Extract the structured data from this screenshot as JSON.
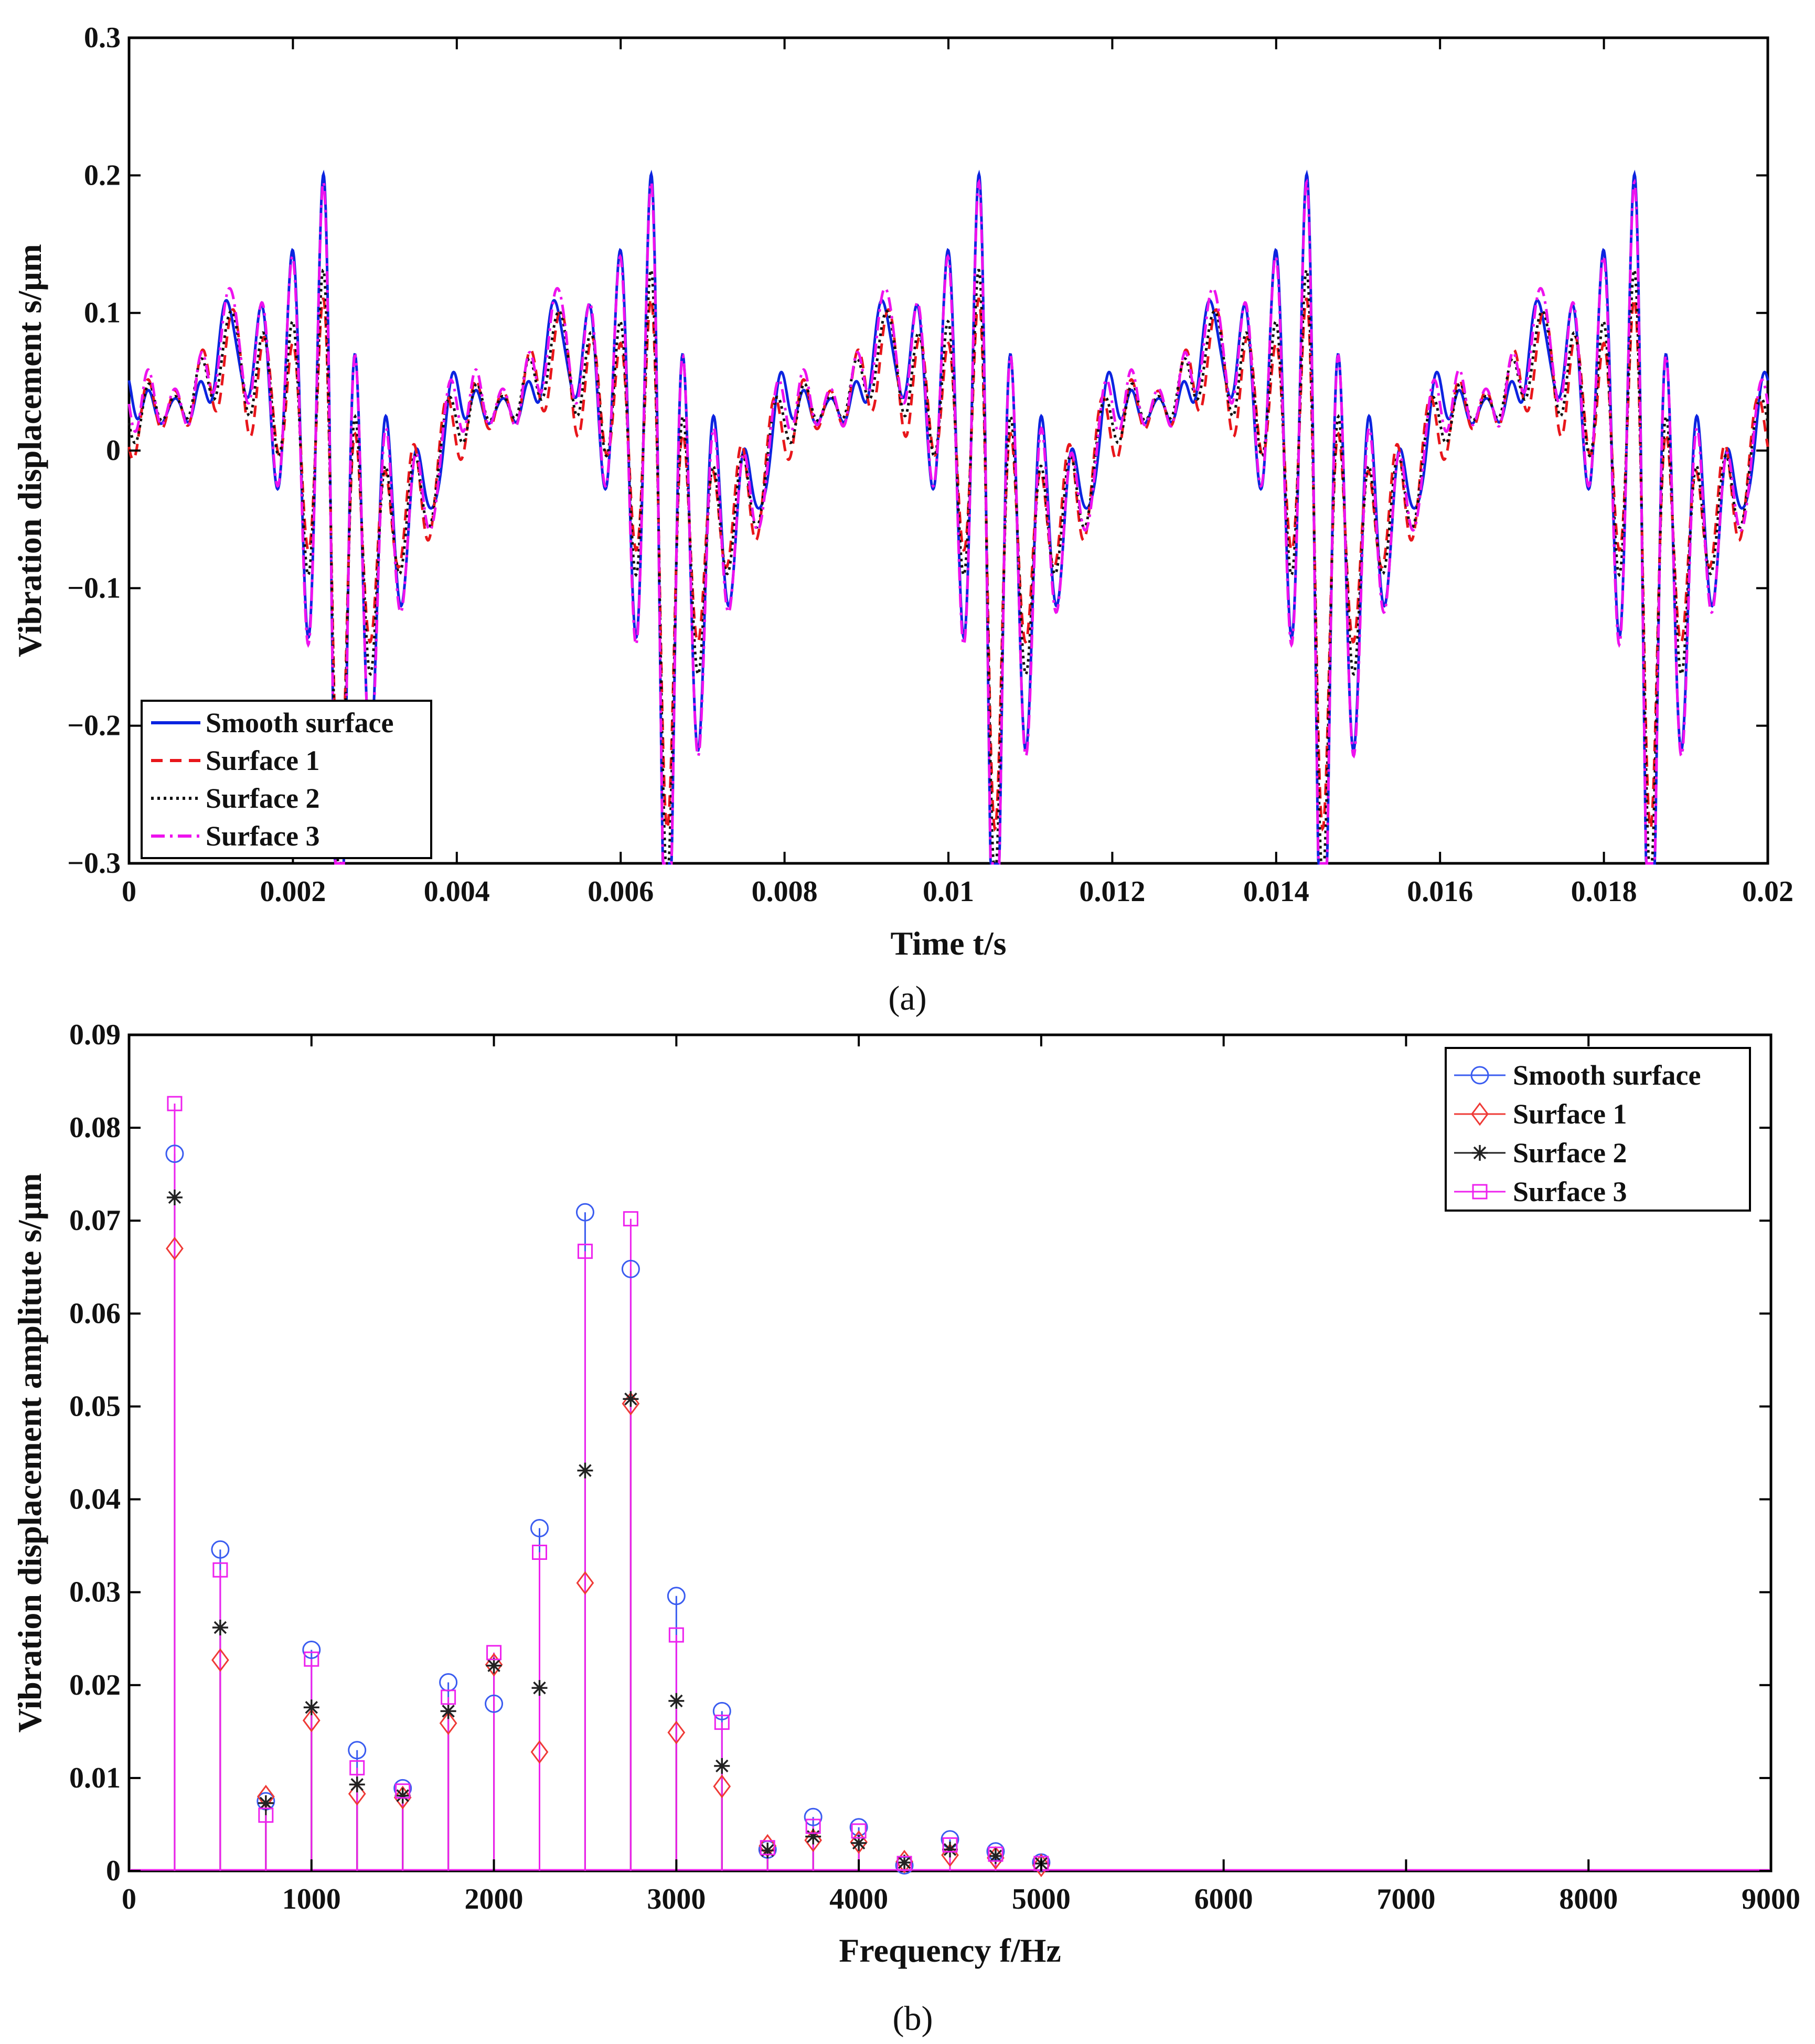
{
  "chart_data": [
    {
      "type": "line",
      "caption": "(a)",
      "xlabel": "Time t/s",
      "ylabel": "Vibration displacement s/μm",
      "xlim": [
        0,
        0.02
      ],
      "ylim": [
        -0.3,
        0.3
      ],
      "xticks": [
        "0",
        "0.002",
        "0.004",
        "0.006",
        "0.008",
        "0.01",
        "0.012",
        "0.014",
        "0.016",
        "0.018",
        "0.02"
      ],
      "yticks": [
        "-0.3",
        "-0.2",
        "-0.1",
        "0",
        "0.1",
        "0.2",
        "0.3"
      ],
      "grid": false,
      "legend_position": "bottom-left",
      "signal_model": {
        "frequencies_hz": [
          250,
          500,
          750,
          1000,
          1250,
          1500,
          1750,
          2000,
          2250,
          2500,
          2750,
          3000,
          3250,
          3500,
          3750,
          4000,
          4250,
          4500,
          4750,
          5000
        ]
      },
      "series": [
        {
          "name": "Smooth surface",
          "color": "#0b24e0",
          "style": "solid",
          "amplitudes": [
            0.0772,
            0.0346,
            0.0075,
            0.0238,
            0.013,
            0.0089,
            0.0203,
            0.018,
            0.0369,
            0.0709,
            0.0648,
            0.0296,
            0.0172,
            0.0023,
            0.0058,
            0.0047,
            0.0006,
            0.0034,
            0.0021,
            0.0009
          ]
        },
        {
          "name": "Surface 1",
          "color": "#e8161b",
          "style": "dashed",
          "amplitudes": [
            0.067,
            0.0227,
            0.008,
            0.0162,
            0.0083,
            0.0079,
            0.0159,
            0.0222,
            0.0128,
            0.031,
            0.0503,
            0.0149,
            0.0091,
            0.0027,
            0.0033,
            0.0031,
            0.001,
            0.0017,
            0.0014,
            0.0006
          ]
        },
        {
          "name": "Surface 2",
          "color": "#111111",
          "style": "dotted",
          "amplitudes": [
            0.0725,
            0.0262,
            0.0073,
            0.0176,
            0.0093,
            0.0081,
            0.0172,
            0.0221,
            0.0197,
            0.0431,
            0.0508,
            0.0183,
            0.0113,
            0.0022,
            0.0037,
            0.003,
            0.0009,
            0.0023,
            0.0016,
            0.0008
          ]
        },
        {
          "name": "Surface 3",
          "color": "#ee12ee",
          "style": "dashdot",
          "amplitudes": [
            0.0826,
            0.0324,
            0.006,
            0.0228,
            0.0111,
            0.0086,
            0.0187,
            0.0235,
            0.0343,
            0.0667,
            0.0702,
            0.0254,
            0.016,
            0.0025,
            0.0048,
            0.0043,
            0.0008,
            0.0028,
            0.0018,
            0.0008
          ]
        }
      ]
    },
    {
      "type": "stem",
      "caption": "(b)",
      "xlabel": "Frequency f/Hz",
      "ylabel": "Vibration displacement amplitute s/μm",
      "xlim": [
        0,
        9000
      ],
      "ylim": [
        0,
        0.09
      ],
      "xticks": [
        "0",
        "1000",
        "2000",
        "3000",
        "4000",
        "5000",
        "6000",
        "7000",
        "8000",
        "9000"
      ],
      "yticks": [
        "0",
        "0.01",
        "0.02",
        "0.03",
        "0.04",
        "0.05",
        "0.06",
        "0.07",
        "0.08",
        "0.09"
      ],
      "grid": false,
      "legend_position": "top-right",
      "x": [
        250,
        500,
        750,
        1000,
        1250,
        1500,
        1750,
        2000,
        2250,
        2500,
        2750,
        3000,
        3250,
        3500,
        3750,
        4000,
        4250,
        4500,
        4750,
        5000
      ],
      "series": [
        {
          "name": "Smooth surface",
          "color": "#3a5cf0",
          "marker": "circle",
          "values": [
            0.0772,
            0.0346,
            0.0075,
            0.0238,
            0.013,
            0.0089,
            0.0203,
            0.018,
            0.0369,
            0.0709,
            0.0648,
            0.0296,
            0.0172,
            0.0023,
            0.0058,
            0.0047,
            0.0006,
            0.0034,
            0.0021,
            0.0009
          ]
        },
        {
          "name": "Surface 1",
          "color": "#ef3a36",
          "marker": "diamond",
          "values": [
            0.067,
            0.0227,
            0.008,
            0.0162,
            0.0083,
            0.0079,
            0.0159,
            0.0222,
            0.0128,
            0.031,
            0.0503,
            0.0149,
            0.0091,
            0.0027,
            0.0033,
            0.0031,
            0.001,
            0.0017,
            0.0014,
            0.0006
          ]
        },
        {
          "name": "Surface 2",
          "color": "#222222",
          "marker": "asterisk",
          "values": [
            0.0725,
            0.0262,
            0.0073,
            0.0176,
            0.0093,
            0.0081,
            0.0172,
            0.0221,
            0.0197,
            0.0431,
            0.0508,
            0.0183,
            0.0113,
            0.0022,
            0.0037,
            0.003,
            0.0009,
            0.0023,
            0.0016,
            0.0008
          ]
        },
        {
          "name": "Surface 3",
          "color": "#ee22ee",
          "marker": "square",
          "values": [
            0.0826,
            0.0324,
            0.006,
            0.0228,
            0.0111,
            0.0086,
            0.0187,
            0.0235,
            0.0343,
            0.0667,
            0.0702,
            0.0254,
            0.016,
            0.0025,
            0.0048,
            0.0043,
            0.0008,
            0.0028,
            0.0018,
            0.0008
          ]
        }
      ]
    }
  ]
}
